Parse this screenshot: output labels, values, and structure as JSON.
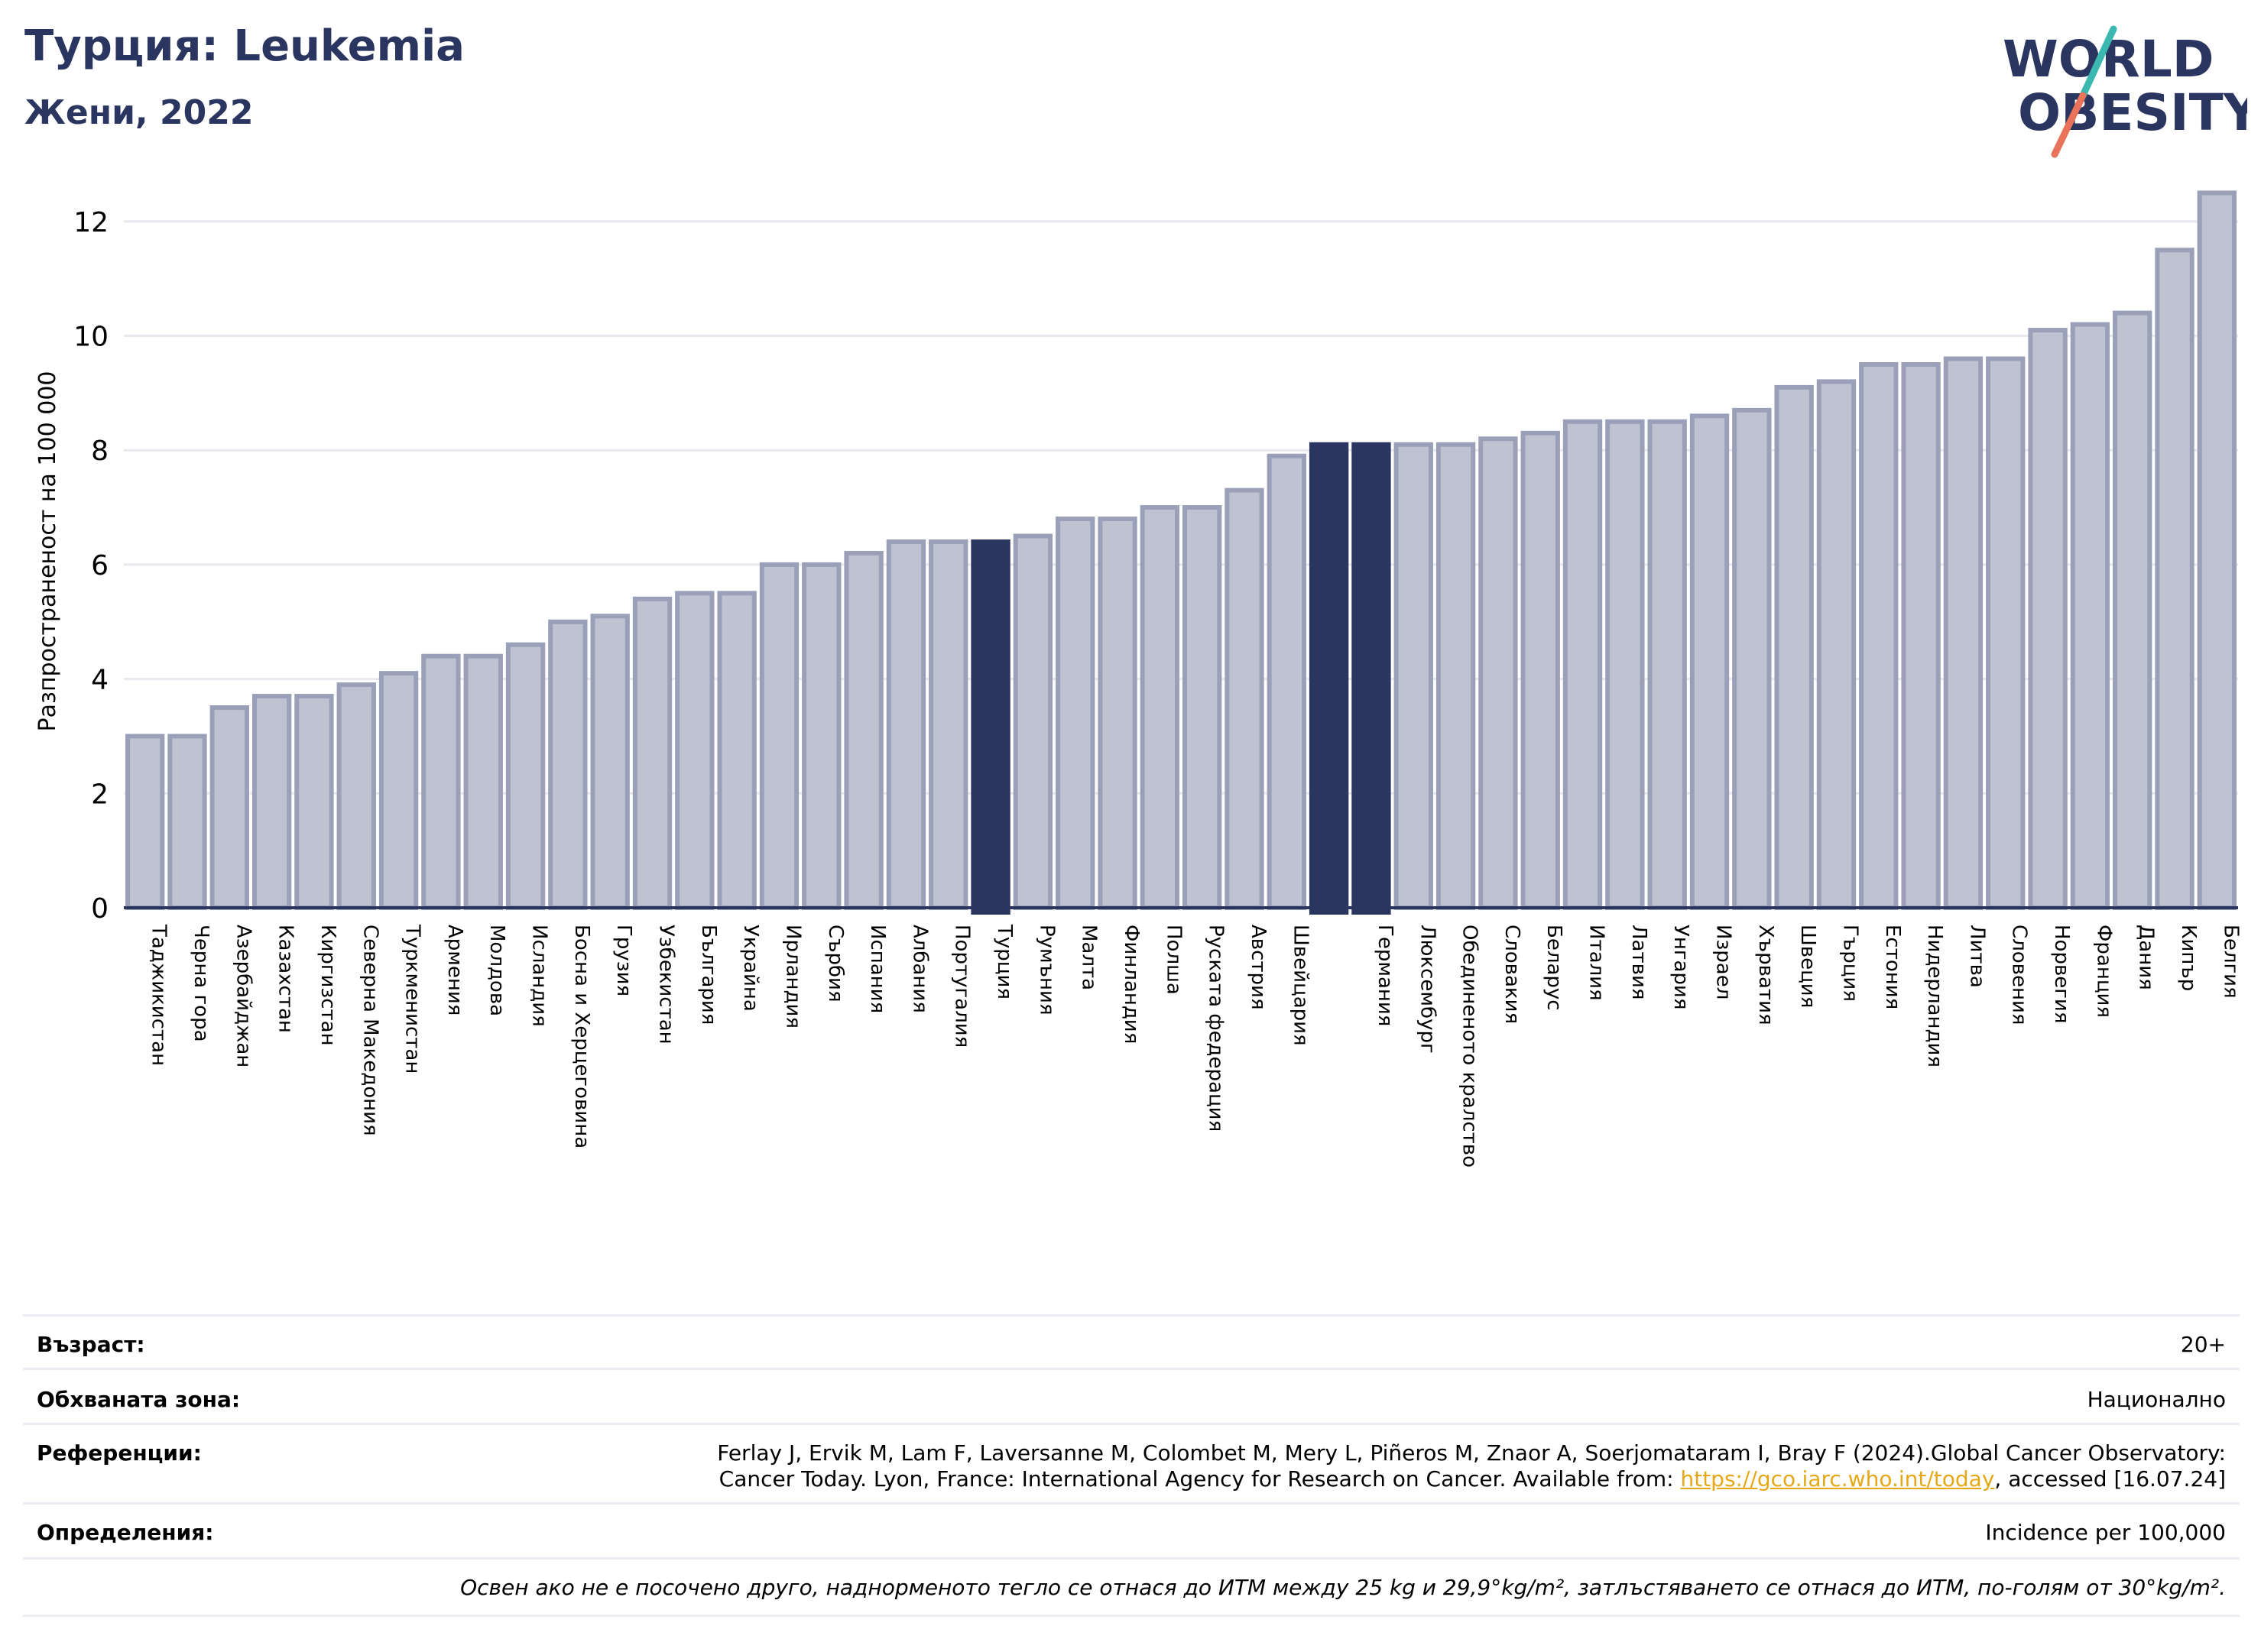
{
  "header": {
    "title": "Турция: Leukemia",
    "subtitle": "Жени, 2022"
  },
  "logo": {
    "line1": "WORLD",
    "line2": "OBESITY",
    "colors": {
      "text": "#2b3660",
      "slash_top": "#3bb8b0",
      "slash_bottom": "#e8735a"
    }
  },
  "colors": {
    "bar_fill": "#bfc3d1",
    "bar_stroke": "#9aa0b8",
    "highlight": "#2b3660",
    "grid": "#e8e8ee",
    "axis": "#2b3660"
  },
  "chart_data": {
    "type": "bar",
    "ylabel": "Разпространеност  на 100 000",
    "xlabel": "",
    "ylim": [
      0,
      13
    ],
    "yticks": [
      0,
      2,
      4,
      6,
      8,
      10,
      12
    ],
    "grid": true,
    "highlighted": [
      "Турция",
      "Германия"
    ],
    "categories": [
      "Таджикистан",
      "Черна гора",
      "Азербайджан",
      "Казахстан",
      "Киргизстан",
      "Северна Македония",
      "Туркменистан",
      "Армения",
      "Молдова",
      "Исландия",
      "Босна и Херцеговина",
      "Грузия",
      "Узбекистан",
      "България",
      "Украйна",
      "Ирландия",
      "Сърбия",
      "Испания",
      "Албания",
      "Португалия",
      "Турция",
      "Румъния",
      "Малта",
      "Финландия",
      "Полша",
      "Руската федерация",
      "Австрия",
      "Швейцария",
      "",
      "Германия",
      "Люксембург",
      "Обединеното кралство",
      "Словакия",
      "Беларус",
      "Италия",
      "Латвия",
      "Унгария",
      "Израел",
      "Хърватия",
      "Швеция",
      "Гърция",
      "Естония",
      "Нидерландия",
      "Литва",
      "Словения",
      "Норвегия",
      "Франция",
      "Дания",
      "Кипър",
      "Белгия"
    ],
    "values": [
      3.0,
      3.0,
      3.5,
      3.7,
      3.7,
      3.9,
      4.1,
      4.4,
      4.4,
      4.6,
      5.0,
      5.1,
      5.4,
      5.5,
      5.5,
      6.0,
      6.0,
      6.2,
      6.4,
      6.4,
      6.4,
      6.5,
      6.8,
      6.8,
      7.0,
      7.0,
      7.3,
      7.9,
      8.1,
      8.1,
      8.1,
      8.1,
      8.2,
      8.3,
      8.5,
      8.5,
      8.5,
      8.6,
      8.7,
      9.1,
      9.2,
      9.5,
      9.5,
      9.6,
      9.6,
      10.1,
      10.2,
      10.4,
      11.5,
      12.5
    ]
  },
  "info": {
    "age_label": "Възраст:",
    "age_value": "20+",
    "area_label": "Обхваната зона:",
    "area_value": "Национално",
    "ref_label": "Референции:",
    "ref_line1": "Ferlay J, Ervik M, Lam F, Laversanne M, Colombet M, Mery L, Piñeros M, Znaor A, Soerjomataram I, Bray F (2024).Global Cancer Observatory:",
    "ref_line2_pre": "Cancer Today. Lyon, France: International Agency for Research on Cancer. Available from: ",
    "ref_link": "https://gco.iarc.who.int/today",
    "ref_line2_post": ", accessed [16.07.24]",
    "def_label": "Определения:",
    "def_value": "Incidence per 100,000",
    "note": "Освен ако не е посочено друго, наднорменото тегло се отнася до ИТМ между 25 kg и 29,9°kg/m², затлъстяването се отнася до ИТМ, по-голям от 30°kg/m²."
  }
}
